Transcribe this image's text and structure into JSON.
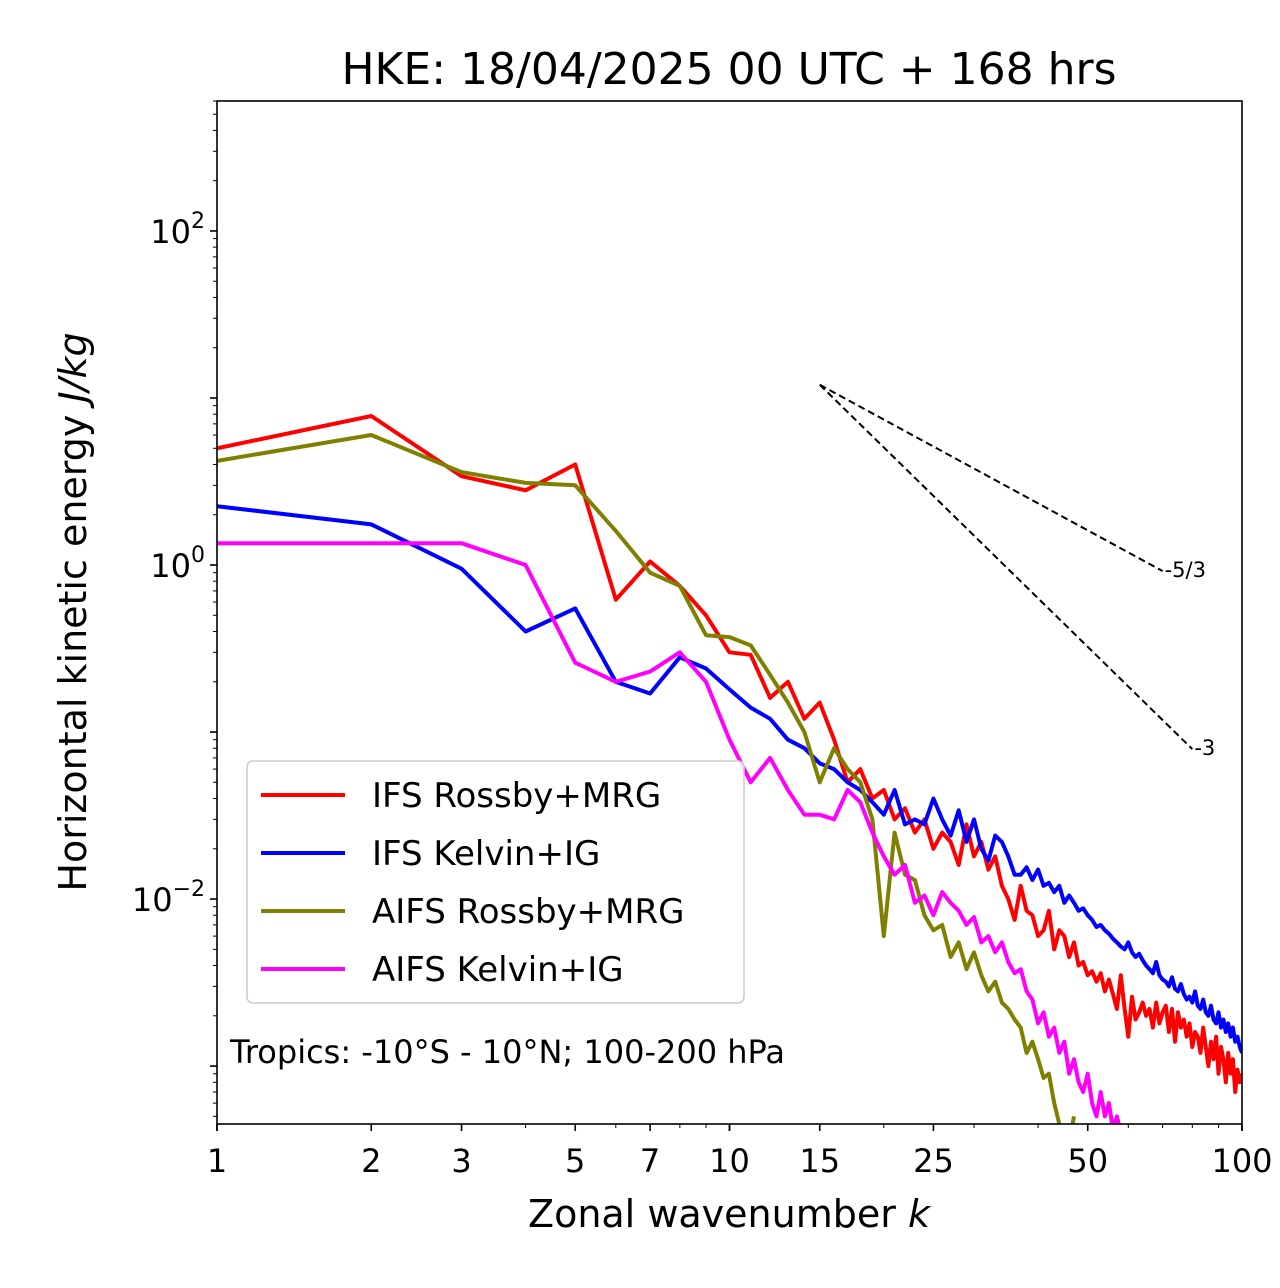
{
  "chart_data": {
    "type": "line",
    "title": "HKE: 18/04/2025 00 UTC + 168 hrs",
    "xlabel": "Zonal wavenumber",
    "xlabel_symbol": "k",
    "ylabel": "Horizontal kinetic energy",
    "ylabel_units": "J/kg",
    "xscale": "log",
    "yscale": "log",
    "xlim": [
      1,
      100
    ],
    "ylim": [
      0.00045,
      600
    ],
    "x_ticks": [
      1,
      2,
      3,
      5,
      7,
      10,
      15,
      25,
      50,
      100
    ],
    "x_tick_labels": [
      "1",
      "2",
      "3",
      "5",
      "7",
      "10",
      "15",
      "25",
      "50",
      "100"
    ],
    "y_ticks": [
      0.01,
      1,
      100
    ],
    "y_tick_base": "10",
    "y_tick_exponents": [
      "−2",
      "0",
      "2"
    ],
    "grid": false,
    "legend_position": "lower-left",
    "annotation": "Tropics: -10°S - 10°N; 100-200 hPa",
    "reference_lines": [
      {
        "label": "-5/3",
        "slope": -1.6667,
        "x": [
          15,
          70
        ],
        "y": [
          12,
          0.92
        ]
      },
      {
        "label": "-3",
        "slope": -3,
        "x": [
          15,
          80
        ],
        "y": [
          12,
          0.079
        ]
      }
    ],
    "series": [
      {
        "name": "IFS Rossby+MRG",
        "color": "#ff0000",
        "x": [
          1,
          2,
          3,
          4,
          5,
          6,
          7,
          8,
          9,
          10,
          11,
          12,
          13,
          14,
          15,
          16,
          17,
          18,
          19,
          20,
          21,
          22,
          23,
          24,
          25,
          26,
          27,
          28,
          29,
          30,
          31,
          32,
          33,
          34,
          35,
          36,
          37,
          38,
          39,
          40,
          41,
          42,
          43,
          44,
          45,
          46,
          47,
          48,
          49,
          50,
          51,
          52,
          53,
          54,
          55,
          56,
          57,
          58,
          59,
          60,
          61,
          62,
          63,
          64,
          65,
          66,
          67,
          68,
          69,
          70,
          71,
          72,
          73,
          74,
          75,
          76,
          77,
          78,
          79,
          80,
          81,
          82,
          83,
          84,
          85,
          86,
          87,
          88,
          89,
          90,
          91,
          92,
          93,
          94,
          95,
          96,
          97,
          98,
          99,
          100
        ],
        "y": [
          5.0,
          7.8,
          3.4,
          2.8,
          4.0,
          0.62,
          1.05,
          0.75,
          0.5,
          0.3,
          0.29,
          0.16,
          0.2,
          0.12,
          0.15,
          0.09,
          0.05,
          0.06,
          0.04,
          0.045,
          0.03,
          0.035,
          0.025,
          0.03,
          0.02,
          0.025,
          0.022,
          0.016,
          0.028,
          0.018,
          0.022,
          0.015,
          0.018,
          0.012,
          0.01,
          0.0075,
          0.012,
          0.0085,
          0.008,
          0.006,
          0.0065,
          0.0085,
          0.005,
          0.0065,
          0.006,
          0.0045,
          0.0055,
          0.004,
          0.0042,
          0.0035,
          0.0037,
          0.0032,
          0.0036,
          0.0028,
          0.0033,
          0.0027,
          0.0022,
          0.0035,
          0.0022,
          0.0015,
          0.0026,
          0.0019,
          0.0021,
          0.0024,
          0.002,
          0.0022,
          0.0017,
          0.0024,
          0.0018,
          0.0021,
          0.0023,
          0.0016,
          0.0022,
          0.0014,
          0.0021,
          0.0017,
          0.0019,
          0.0015,
          0.0018,
          0.0013,
          0.0016,
          0.0015,
          0.0012,
          0.0017,
          0.0013,
          0.001,
          0.0014,
          0.0011,
          0.0015,
          0.0009,
          0.0013,
          0.0011,
          0.0008,
          0.0012,
          0.0009,
          0.0011,
          0.0007,
          0.00095,
          0.0008,
          0.0009
        ]
      },
      {
        "name": "IFS Kelvin+IG",
        "color": "#0000ff",
        "x": [
          1,
          2,
          3,
          4,
          5,
          6,
          7,
          8,
          9,
          10,
          11,
          12,
          13,
          14,
          15,
          16,
          17,
          18,
          19,
          20,
          21,
          22,
          23,
          24,
          25,
          26,
          27,
          28,
          29,
          30,
          31,
          32,
          33,
          34,
          35,
          36,
          37,
          38,
          39,
          40,
          41,
          42,
          43,
          44,
          45,
          46,
          47,
          48,
          49,
          50,
          51,
          52,
          53,
          54,
          55,
          56,
          57,
          58,
          59,
          60,
          61,
          62,
          63,
          64,
          65,
          66,
          67,
          68,
          69,
          70,
          71,
          72,
          73,
          74,
          75,
          76,
          77,
          78,
          79,
          80,
          81,
          82,
          83,
          84,
          85,
          86,
          87,
          88,
          89,
          90,
          91,
          92,
          93,
          94,
          95,
          96,
          97,
          98,
          99,
          100
        ],
        "y": [
          2.25,
          1.75,
          0.95,
          0.4,
          0.55,
          0.2,
          0.17,
          0.28,
          0.24,
          0.18,
          0.14,
          0.12,
          0.09,
          0.08,
          0.065,
          0.06,
          0.05,
          0.045,
          0.038,
          0.032,
          0.045,
          0.028,
          0.03,
          0.028,
          0.04,
          0.03,
          0.024,
          0.034,
          0.022,
          0.03,
          0.02,
          0.017,
          0.024,
          0.022,
          0.018,
          0.014,
          0.014,
          0.0155,
          0.013,
          0.015,
          0.012,
          0.0125,
          0.011,
          0.012,
          0.0095,
          0.0105,
          0.0095,
          0.0085,
          0.0088,
          0.008,
          0.0075,
          0.0068,
          0.007,
          0.0065,
          0.0062,
          0.0058,
          0.0055,
          0.0052,
          0.005,
          0.0055,
          0.0048,
          0.0045,
          0.0047,
          0.0043,
          0.004,
          0.0038,
          0.0036,
          0.0042,
          0.0035,
          0.0033,
          0.0032,
          0.003,
          0.0034,
          0.0029,
          0.0028,
          0.0031,
          0.0027,
          0.0025,
          0.0026,
          0.0024,
          0.0028,
          0.0023,
          0.0022,
          0.0025,
          0.0021,
          0.002,
          0.0023,
          0.0019,
          0.0018,
          0.0021,
          0.0017,
          0.0019,
          0.0016,
          0.0018,
          0.0015,
          0.0017,
          0.0014,
          0.0015,
          0.0013,
          0.0012
        ]
      },
      {
        "name": "AIFS Rossby+MRG",
        "color": "#808000",
        "x": [
          1,
          2,
          3,
          4,
          5,
          6,
          7,
          8,
          9,
          10,
          11,
          12,
          13,
          14,
          15,
          16,
          17,
          18,
          19,
          20,
          21,
          22,
          23,
          24,
          25,
          26,
          27,
          28,
          29,
          30,
          31,
          32,
          33,
          34,
          35,
          36,
          37,
          38,
          39,
          40,
          41,
          42,
          43,
          44,
          45,
          46,
          47
        ],
        "y": [
          4.2,
          6.0,
          3.6,
          3.1,
          3.0,
          1.6,
          0.9,
          0.75,
          0.38,
          0.37,
          0.33,
          0.22,
          0.15,
          0.1,
          0.05,
          0.08,
          0.06,
          0.05,
          0.03,
          0.006,
          0.025,
          0.014,
          0.013,
          0.008,
          0.0065,
          0.007,
          0.0045,
          0.0055,
          0.0038,
          0.0048,
          0.0035,
          0.0028,
          0.0032,
          0.0024,
          0.0022,
          0.0019,
          0.0017,
          0.0012,
          0.0014,
          0.0011,
          0.00085,
          0.0009,
          0.0006,
          0.00045,
          0.0004,
          0.00035,
          0.0005
        ]
      },
      {
        "name": "AIFS Kelvin+IG",
        "color": "#ff00ff",
        "x": [
          1,
          2,
          3,
          4,
          5,
          6,
          7,
          8,
          9,
          10,
          11,
          12,
          13,
          14,
          15,
          16,
          17,
          18,
          19,
          20,
          21,
          22,
          23,
          24,
          25,
          26,
          27,
          28,
          29,
          30,
          31,
          32,
          33,
          34,
          35,
          36,
          37,
          38,
          39,
          40,
          41,
          42,
          43,
          44,
          45,
          46,
          47,
          48,
          49,
          50,
          51,
          52,
          53,
          54,
          55,
          56,
          57,
          58
        ],
        "y": [
          1.35,
          1.35,
          1.35,
          1.0,
          0.26,
          0.2,
          0.23,
          0.3,
          0.2,
          0.09,
          0.05,
          0.07,
          0.045,
          0.032,
          0.032,
          0.03,
          0.045,
          0.038,
          0.025,
          0.018,
          0.014,
          0.016,
          0.0095,
          0.0105,
          0.008,
          0.011,
          0.0095,
          0.0085,
          0.007,
          0.0078,
          0.0055,
          0.006,
          0.0048,
          0.0055,
          0.0042,
          0.0036,
          0.0038,
          0.0028,
          0.0025,
          0.0018,
          0.0021,
          0.0015,
          0.0017,
          0.0012,
          0.0014,
          0.0009,
          0.0011,
          0.0008,
          0.0007,
          0.0009,
          0.0006,
          0.0005,
          0.0007,
          0.0005,
          0.0006,
          0.00042,
          0.0005,
          0.0004
        ]
      }
    ]
  }
}
